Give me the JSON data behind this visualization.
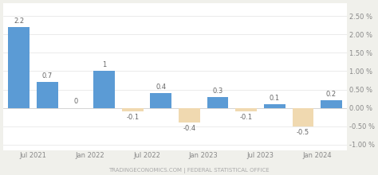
{
  "x_positions": [
    0,
    1,
    2,
    3,
    4,
    5,
    6,
    7,
    8,
    9,
    10,
    11
  ],
  "values": [
    2.2,
    0.7,
    0.0,
    1.0,
    -0.1,
    0.4,
    -0.4,
    0.3,
    -0.1,
    0.1,
    -0.5,
    0.2
  ],
  "xtick_positions": [
    0.5,
    2.5,
    4.5,
    6.5,
    8.5,
    10.5
  ],
  "xtick_labels": [
    "Jul 2021",
    "Jan 2022",
    "Jul 2022",
    "Jan 2023",
    "Jul 2023",
    "Jan 2024"
  ],
  "positive_color": "#5b9bd5",
  "negative_color": "#f0d9b0",
  "yticks": [
    -1.0,
    -0.5,
    0.0,
    0.5,
    1.0,
    1.5,
    2.0,
    2.5
  ],
  "ytick_labels": [
    "-1.00 %",
    "-0.50 %",
    "0.00 %",
    "0.50 %",
    "1.00 %",
    "1.50 %",
    "2.00 %",
    "2.50 %"
  ],
  "ylim": [
    -1.15,
    2.85
  ],
  "xlim": [
    -0.55,
    11.55
  ],
  "footer_text": "TRADINGECONOMICS.COM | FEDERAL STATISTICAL OFFICE",
  "plot_bg_color": "#ffffff",
  "fig_bg_color": "#f0f0eb",
  "bar_width": 0.75,
  "grid_color": "#e8e8e8",
  "label_fontsize": 6.0,
  "tick_fontsize": 6.0,
  "footer_fontsize": 5.0,
  "label_color": "#666666",
  "tick_color": "#888888",
  "footer_color": "#aaaaaa"
}
